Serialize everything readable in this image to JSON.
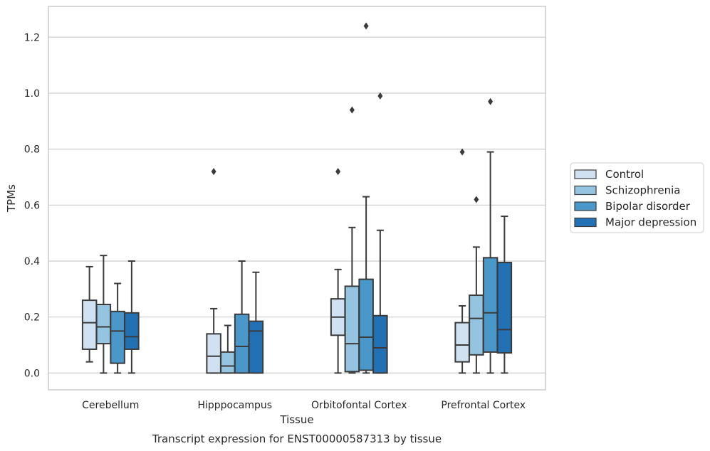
{
  "chart_data": {
    "type": "boxplot",
    "caption": "Transcript expression for ENST00000587313 by tissue",
    "xlabel": "Tissue",
    "ylabel": "TPMs",
    "ylim": [
      -0.06,
      1.31
    ],
    "yticks": [
      "0.0",
      "0.2",
      "0.4",
      "0.6",
      "0.8",
      "1.0",
      "1.2"
    ],
    "grid": "horizontal",
    "legend_position": "right",
    "categories": [
      "Cerebellum",
      "Hipppocampus",
      "Orbitofontal Cortex",
      "Prefrontal Cortex"
    ],
    "series": [
      {
        "name": "Control",
        "color": "#d0e1f2",
        "boxes": [
          {
            "whislo": 0.04,
            "q1": 0.085,
            "med": 0.18,
            "q3": 0.26,
            "whishi": 0.38,
            "fliers": []
          },
          {
            "whislo": 0.0,
            "q1": 0.0,
            "med": 0.06,
            "q3": 0.14,
            "whishi": 0.23,
            "fliers": [
              0.72
            ]
          },
          {
            "whislo": 0.0,
            "q1": 0.135,
            "med": 0.2,
            "q3": 0.265,
            "whishi": 0.37,
            "fliers": [
              0.72
            ]
          },
          {
            "whislo": 0.0,
            "q1": 0.04,
            "med": 0.1,
            "q3": 0.18,
            "whishi": 0.24,
            "fliers": [
              0.79
            ]
          }
        ]
      },
      {
        "name": "Schizophrenia",
        "color": "#94c4df",
        "boxes": [
          {
            "whislo": 0.0,
            "q1": 0.105,
            "med": 0.165,
            "q3": 0.245,
            "whishi": 0.42,
            "fliers": []
          },
          {
            "whislo": 0.0,
            "q1": 0.0,
            "med": 0.025,
            "q3": 0.075,
            "whishi": 0.17,
            "fliers": []
          },
          {
            "whislo": 0.0,
            "q1": 0.005,
            "med": 0.105,
            "q3": 0.31,
            "whishi": 0.52,
            "fliers": [
              0.94
            ]
          },
          {
            "whislo": 0.0,
            "q1": 0.065,
            "med": 0.195,
            "q3": 0.278,
            "whishi": 0.45,
            "fliers": [
              0.62
            ]
          }
        ]
      },
      {
        "name": "Bipolar disorder",
        "color": "#4a98c9",
        "boxes": [
          {
            "whislo": 0.0,
            "q1": 0.035,
            "med": 0.15,
            "q3": 0.22,
            "whishi": 0.32,
            "fliers": []
          },
          {
            "whislo": 0.0,
            "q1": 0.0,
            "med": 0.095,
            "q3": 0.21,
            "whishi": 0.4,
            "fliers": []
          },
          {
            "whislo": 0.0,
            "q1": 0.01,
            "med": 0.128,
            "q3": 0.335,
            "whishi": 0.63,
            "fliers": [
              1.24
            ]
          },
          {
            "whislo": 0.0,
            "q1": 0.075,
            "med": 0.215,
            "q3": 0.412,
            "whishi": 0.79,
            "fliers": [
              0.97
            ]
          }
        ]
      },
      {
        "name": "Major depression",
        "color": "#2271b5",
        "boxes": [
          {
            "whislo": 0.0,
            "q1": 0.085,
            "med": 0.13,
            "q3": 0.215,
            "whishi": 0.4,
            "fliers": []
          },
          {
            "whislo": 0.0,
            "q1": 0.0,
            "med": 0.15,
            "q3": 0.185,
            "whishi": 0.36,
            "fliers": []
          },
          {
            "whislo": 0.0,
            "q1": 0.0,
            "med": 0.09,
            "q3": 0.205,
            "whishi": 0.51,
            "fliers": [
              0.99
            ]
          },
          {
            "whislo": 0.0,
            "q1": 0.072,
            "med": 0.155,
            "q3": 0.395,
            "whishi": 0.56,
            "fliers": []
          }
        ]
      }
    ]
  }
}
